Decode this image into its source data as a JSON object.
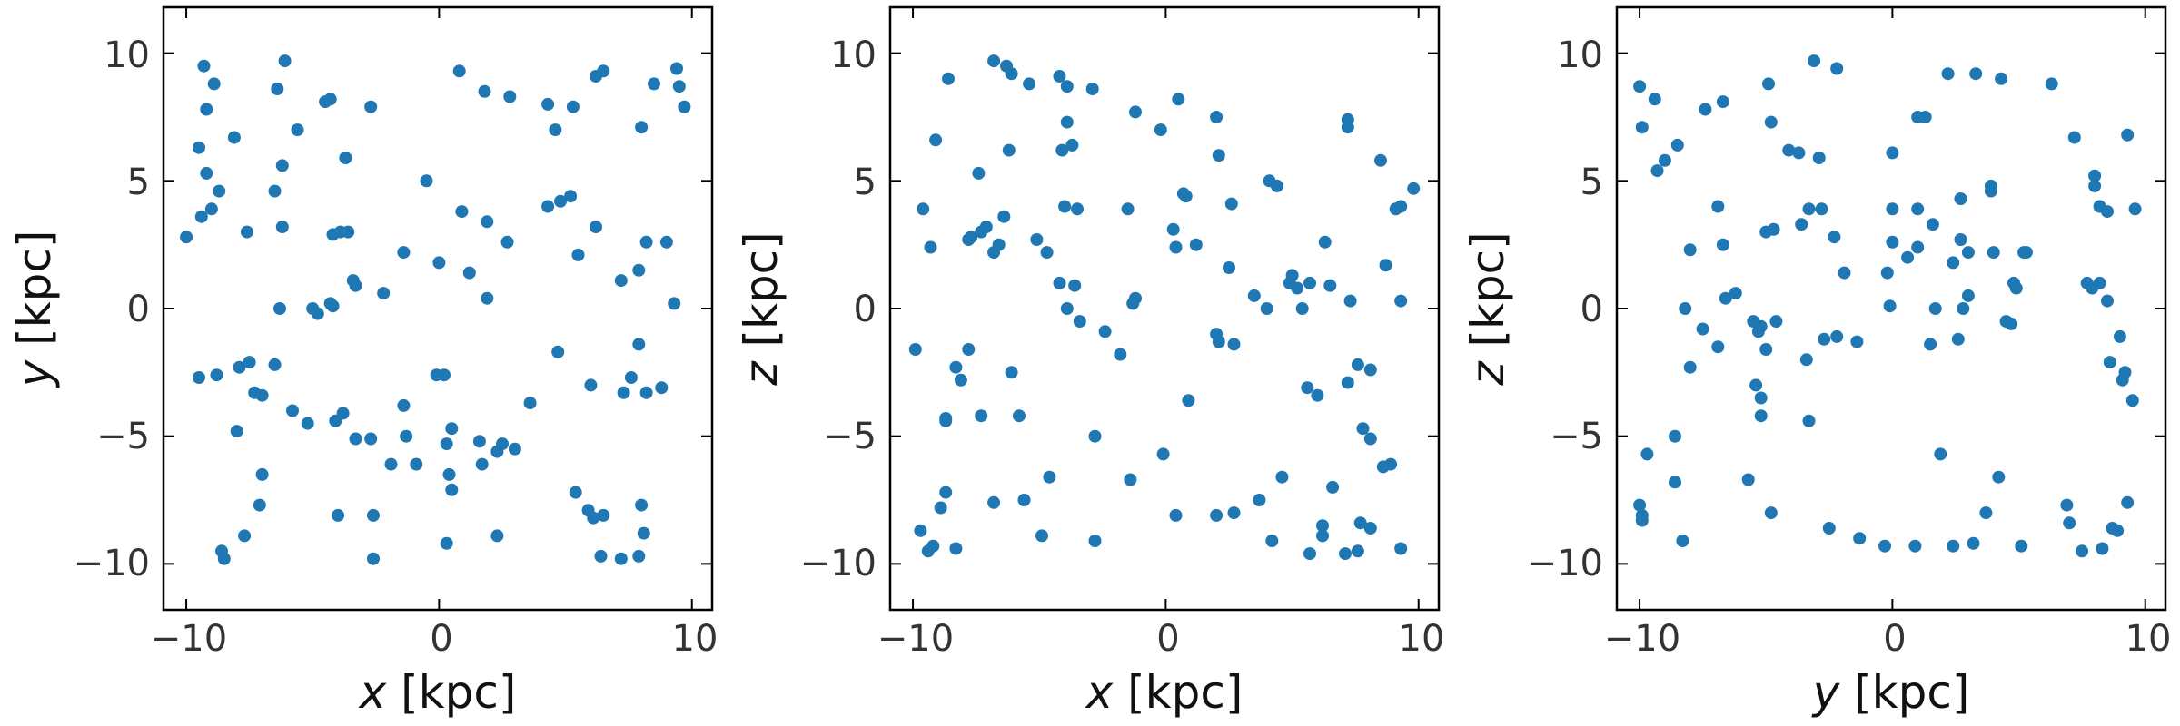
{
  "figure": {
    "background": "#ffffff",
    "point_color": "#1f77b4"
  },
  "chart_data": [
    {
      "type": "scatter",
      "title": "",
      "xlabel_var": "x",
      "xlabel_unit": " [kpc]",
      "ylabel_var": "y",
      "ylabel_unit": " [kpc]",
      "xlim": [
        -10.9,
        10.8
      ],
      "ylim": [
        -11.8,
        11.8
      ],
      "xticks": [
        -10,
        0,
        10
      ],
      "yticks": [
        -10,
        -5,
        0,
        5,
        10
      ],
      "xtick_labels": [
        "−10",
        "0",
        "10"
      ],
      "ytick_labels": [
        "−10",
        "−5",
        "0",
        "5",
        "10"
      ],
      "grid": false,
      "series": [
        {
          "x": [
            -9.3,
            -9.2,
            -8.9,
            -8.1,
            -6.1,
            -6.4,
            0.8,
            1.8,
            2.8,
            4.6,
            5.3,
            6.2,
            6.5,
            8.0,
            8.5,
            9.4,
            9.7,
            9.5,
            -9.4,
            -9.0,
            -5.6,
            -4.5,
            -4.3,
            -3.7,
            -2.7,
            4.3,
            -6.2,
            -8.7,
            -9.2,
            -9.5,
            -10.0,
            -7.6,
            -6.5,
            -6.2,
            -3.9,
            -3.6,
            -3.4,
            -3.3,
            -4.2,
            -4.2,
            -0.5,
            5.2,
            4.8,
            4.3,
            0.9,
            1.9,
            5.5,
            6.2,
            7.2,
            7.9,
            8.2,
            9.0,
            9.3,
            1.9,
            2.7,
            -1.4,
            0.0,
            1.2,
            -2.2,
            -4.3,
            -4.8,
            -5.0,
            -6.3,
            0.2,
            4.7,
            7.9,
            6.0,
            7.6,
            7.3,
            8.2,
            8.8,
            8.0,
            3.6,
            -0.1,
            0.4,
            -9.5,
            -8.8,
            -8.0,
            -7.9,
            -7.5,
            -7.3,
            -7.0,
            -6.5,
            -5.8,
            -5.2,
            -4.1,
            -3.8,
            -3.3,
            -2.7,
            -1.4,
            -1.9,
            -1.3,
            -0.9,
            0.3,
            0.5,
            1.6,
            2.5,
            3.0,
            2.3,
            1.7,
            0.3,
            -7.0,
            -7.1,
            -7.7,
            -8.5,
            -8.6,
            -2.6,
            -4.0,
            0.5,
            2.3,
            5.4,
            6.1,
            6.5,
            6.4,
            7.9,
            8.1,
            7.2,
            5.9,
            -2.6
          ],
          "y": [
            9.5,
            7.8,
            8.8,
            6.7,
            9.7,
            8.6,
            9.3,
            8.5,
            8.3,
            7.0,
            7.9,
            9.1,
            9.3,
            7.1,
            8.8,
            9.4,
            7.9,
            8.7,
            3.6,
            3.9,
            7.0,
            8.1,
            8.2,
            5.9,
            7.9,
            8.0,
            3.2,
            4.6,
            5.3,
            6.3,
            2.8,
            3.0,
            4.6,
            5.6,
            3.0,
            3.0,
            1.1,
            0.9,
            2.9,
            0.1,
            5.0,
            4.4,
            4.2,
            4.0,
            3.8,
            3.4,
            2.1,
            3.2,
            1.1,
            1.5,
            2.6,
            2.6,
            0.2,
            0.4,
            2.6,
            2.2,
            1.8,
            1.4,
            0.6,
            0.2,
            -0.2,
            0.0,
            0.0,
            -2.6,
            -1.7,
            -1.4,
            -3.0,
            -2.7,
            -3.3,
            -3.3,
            -3.1,
            -7.7,
            -3.7,
            -2.6,
            -6.5,
            -2.7,
            -2.6,
            -4.8,
            -2.3,
            -2.1,
            -3.3,
            -3.4,
            -2.2,
            -4.0,
            -4.5,
            -4.4,
            -4.1,
            -5.1,
            -5.1,
            -3.8,
            -6.1,
            -5.0,
            -6.1,
            -5.3,
            -4.7,
            -5.2,
            -5.3,
            -5.5,
            -5.6,
            -6.1,
            -9.2,
            -6.5,
            -7.7,
            -8.9,
            -9.8,
            -9.5,
            -9.8,
            -8.1,
            -7.1,
            -8.9,
            -7.2,
            -8.2,
            -8.1,
            -9.7,
            -9.7,
            -8.8,
            -9.8,
            -7.9,
            -8.1
          ]
        }
      ]
    },
    {
      "type": "scatter",
      "title": "",
      "xlabel_var": "x",
      "xlabel_unit": " [kpc]",
      "ylabel_var": "z",
      "ylabel_unit": " [kpc]",
      "xlim": [
        -10.9,
        10.8
      ],
      "ylim": [
        -11.8,
        11.8
      ],
      "xticks": [
        -10,
        0,
        10
      ],
      "yticks": [
        -10,
        -5,
        0,
        5,
        10
      ],
      "xtick_labels": [
        "−10",
        "0",
        "10"
      ],
      "ytick_labels": [
        "−10",
        "−5",
        "0",
        "5",
        "10"
      ],
      "grid": false,
      "series": [
        {
          "x": [
            -6.8,
            -6.3,
            -6.1,
            -5.4,
            -4.2,
            -3.9,
            -2.9,
            -1.2,
            0.5,
            2.0,
            7.2,
            7.2,
            -8.6,
            -9.1,
            -3.7,
            -3.9,
            -4.1,
            2.1,
            4.4,
            4.1,
            -9.6,
            -9.3,
            -7.4,
            -7.1,
            -6.8,
            -6.4,
            -6.2,
            -5.1,
            -4.0,
            -3.5,
            -1.5,
            -0.2,
            0.3,
            0.7,
            0.8,
            2.6,
            -7.8,
            8.5,
            9.1,
            9.3,
            9.8,
            8.7,
            -7.7,
            -7.3,
            -6.6,
            -4.7,
            -4.2,
            -3.6,
            -3.9,
            -3.4,
            -1.2,
            -1.3,
            -1.8,
            -2.4,
            0.4,
            1.2,
            2.5,
            2.0,
            2.1,
            2.7,
            3.5,
            5.0,
            4.9,
            5.2,
            6.3,
            5.7,
            5.4,
            6.5,
            4.0,
            7.3,
            7.6,
            8.1,
            9.3,
            8.9,
            0.9,
            -6.1,
            -7.3,
            -8.3,
            -8.1,
            -8.7,
            -5.8,
            -2.8,
            -8.7,
            -7.8,
            -6.8,
            -5.6,
            -4.6,
            -1.4,
            -0.1,
            0.4,
            2.0,
            2.7,
            3.7,
            4.2,
            4.6,
            5.7,
            6.2,
            6.2,
            6.6,
            6.0,
            7.1,
            7.6,
            8.1,
            7.7,
            8.1,
            7.2,
            7.8,
            8.6,
            9.3,
            5.6,
            -9.7,
            -8.9,
            -9.4,
            -9.2,
            -8.7,
            -8.3,
            -2.8,
            -4.9,
            -9.9
          ],
          "y": [
            9.7,
            9.5,
            9.2,
            8.8,
            9.1,
            8.7,
            8.6,
            7.7,
            8.2,
            7.5,
            7.4,
            7.1,
            9.0,
            6.6,
            6.4,
            7.3,
            6.2,
            6.0,
            4.8,
            5.0,
            3.9,
            2.4,
            5.3,
            3.2,
            2.2,
            3.6,
            6.2,
            2.7,
            4.0,
            3.9,
            3.9,
            7.0,
            3.1,
            4.5,
            4.4,
            4.1,
            2.7,
            5.8,
            3.9,
            4.0,
            4.7,
            1.7,
            2.8,
            3.0,
            2.5,
            2.2,
            1.0,
            0.9,
            0.0,
            -0.5,
            0.4,
            0.2,
            -1.8,
            -0.9,
            2.4,
            2.5,
            1.6,
            -1.0,
            -1.3,
            -1.4,
            0.5,
            1.3,
            1.0,
            0.8,
            2.6,
            1.0,
            0.0,
            0.9,
            0.0,
            0.3,
            -2.2,
            -2.4,
            0.3,
            -6.1,
            -3.6,
            -2.5,
            -4.2,
            -2.3,
            -2.8,
            -4.3,
            -4.2,
            -5.0,
            -4.4,
            -1.6,
            -7.6,
            -7.5,
            -6.6,
            -6.7,
            -5.7,
            -8.1,
            -8.1,
            -8.0,
            -7.5,
            -9.1,
            -6.6,
            -9.6,
            -8.5,
            -8.9,
            -7.0,
            -3.4,
            -9.6,
            -9.5,
            -8.6,
            -8.4,
            -5.1,
            -2.9,
            -4.7,
            -6.2,
            -9.4,
            -3.1,
            -8.7,
            -7.8,
            -9.5,
            -9.3,
            -7.2,
            -9.4,
            -9.1,
            -8.9,
            -1.6
          ]
        }
      ]
    },
    {
      "type": "scatter",
      "title": "",
      "xlabel_var": "y",
      "xlabel_unit": " [kpc]",
      "ylabel_var": "z",
      "ylabel_unit": " [kpc]",
      "xlim": [
        -10.9,
        10.8
      ],
      "ylim": [
        -11.8,
        11.8
      ],
      "xticks": [
        -10,
        0,
        10
      ],
      "yticks": [
        -10,
        -5,
        0,
        5,
        10
      ],
      "xtick_labels": [
        "−10",
        "0",
        "10"
      ],
      "ytick_labels": [
        "−10",
        "−5",
        "0",
        "5",
        "10"
      ],
      "grid": false,
      "series": [
        {
          "x": [
            -10.0,
            -9.4,
            -9.9,
            -8.5,
            -7.4,
            -6.7,
            -4.9,
            -4.8,
            -3.1,
            -2.2,
            2.2,
            3.3,
            4.3,
            0.0,
            1.0,
            1.3,
            6.3,
            7.2,
            9.3,
            -9.0,
            -9.3,
            -6.9,
            -6.7,
            -4.7,
            -4.1,
            -3.7,
            -2.9,
            -3.3,
            -2.8,
            -2.3,
            0.0,
            0.0,
            1.0,
            2.7,
            3.9,
            3.9,
            5.2,
            8.0,
            8.0,
            8.2,
            8.5,
            9.6,
            -8.0,
            -5.0,
            -3.6,
            -1.9,
            -0.2,
            0.6,
            1.0,
            1.6,
            2.4,
            2.7,
            3.0,
            4.0,
            4.8,
            4.9,
            5.3,
            3.0,
            2.8,
            1.7,
            7.7,
            8.2,
            7.9,
            8.5,
            -8.2,
            -8.0,
            -7.5,
            -6.9,
            -6.6,
            -6.2,
            -5.5,
            -5.2,
            -5.3,
            -4.6,
            -3.4,
            -2.7,
            -2.2,
            -5.0,
            -1.4,
            -0.1,
            1.5,
            2.6,
            4.5,
            4.7,
            8.6,
            9.1,
            9.5,
            9.2,
            9.0,
            -9.7,
            -8.6,
            -8.6,
            -5.2,
            -5.7,
            -5.4,
            -5.2,
            -3.3,
            -10.0,
            -9.9,
            -9.9,
            -8.3,
            -4.8,
            -2.5,
            -1.3,
            -0.3,
            0.9,
            2.4,
            3.2,
            1.9,
            3.7,
            4.2,
            5.1,
            6.9,
            7.0,
            7.5,
            8.3,
            8.9,
            8.7,
            9.3
          ],
          "y": [
            8.7,
            8.2,
            7.1,
            6.4,
            7.8,
            8.1,
            8.8,
            7.3,
            9.7,
            9.4,
            9.2,
            9.2,
            9.0,
            6.1,
            7.5,
            7.5,
            8.8,
            6.7,
            6.8,
            5.8,
            5.4,
            4.0,
            2.5,
            3.1,
            6.2,
            6.1,
            5.9,
            3.9,
            3.9,
            2.8,
            3.9,
            2.6,
            3.9,
            4.3,
            4.6,
            4.8,
            2.2,
            5.2,
            4.8,
            4.0,
            3.8,
            3.9,
            2.3,
            3.0,
            3.3,
            1.4,
            1.4,
            2.0,
            2.4,
            3.3,
            1.8,
            2.7,
            2.2,
            2.2,
            1.0,
            0.8,
            2.2,
            0.5,
            0.0,
            0.0,
            1.0,
            1.0,
            0.8,
            0.3,
            0.0,
            -2.3,
            -0.8,
            -1.5,
            0.4,
            0.6,
            -0.5,
            -0.7,
            -0.9,
            -0.5,
            -2.0,
            -1.2,
            -1.1,
            -1.6,
            -1.3,
            0.1,
            -1.4,
            -1.2,
            -0.5,
            -0.6,
            -2.1,
            -2.8,
            -3.6,
            -2.5,
            -1.1,
            -5.7,
            -5.0,
            -6.8,
            -3.5,
            -6.7,
            -3.0,
            -4.2,
            -4.4,
            -7.7,
            -8.1,
            -8.3,
            -9.1,
            -8.0,
            -8.6,
            -9.0,
            -9.3,
            -9.3,
            -9.3,
            -9.2,
            -5.7,
            -8.0,
            -6.6,
            -9.3,
            -7.7,
            -8.4,
            -9.5,
            -9.4,
            -8.7,
            -8.6,
            -7.6
          ]
        }
      ]
    }
  ]
}
